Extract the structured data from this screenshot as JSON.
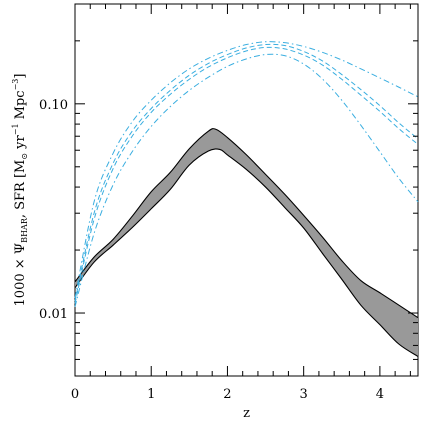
{
  "chart_data": {
    "type": "area",
    "xlabel": "z",
    "ylabel": "1000 × ΨBHAR, SFR [M⊙ yr⁻¹ Mpc⁻³]",
    "ylabel_parts": {
      "pre": "1000 × Ψ",
      "sub": "BHAR",
      "mid": ", SFR [M",
      "sun": "⊙",
      "yr": " yr",
      "exp1": "−1",
      "mpc": " Mpc",
      "exp3": "−3",
      "close": "]"
    },
    "xlim": [
      0,
      4.5
    ],
    "ylim": [
      0.005,
      0.3
    ],
    "yscale": "log",
    "x_ticks": [
      0,
      1,
      2,
      3,
      4
    ],
    "x_tick_labels": [
      "0",
      "1",
      "2",
      "3",
      "4"
    ],
    "y_ticks": [
      0.01,
      0.1
    ],
    "y_tick_labels": [
      "0.01",
      "0.10"
    ],
    "band_color": "#999999",
    "sfr_color": "#3aaee0",
    "band": {
      "name": "",
      "upper": [
        [
          0,
          0.0141
        ],
        [
          0.25,
          0.0185
        ],
        [
          0.5,
          0.0225
        ],
        [
          0.75,
          0.029
        ],
        [
          1.0,
          0.038
        ],
        [
          1.25,
          0.047
        ],
        [
          1.5,
          0.061
        ],
        [
          1.75,
          0.074
        ],
        [
          1.85,
          0.0755
        ],
        [
          2.0,
          0.069
        ],
        [
          2.25,
          0.057
        ],
        [
          2.5,
          0.046
        ],
        [
          2.75,
          0.037
        ],
        [
          3.0,
          0.0293
        ],
        [
          3.25,
          0.023
        ],
        [
          3.5,
          0.0178
        ],
        [
          3.75,
          0.0143
        ],
        [
          4.0,
          0.0125
        ],
        [
          4.25,
          0.0109
        ],
        [
          4.5,
          0.0095
        ]
      ],
      "lower": [
        [
          0,
          0.0132
        ],
        [
          0.25,
          0.0175
        ],
        [
          0.5,
          0.0211
        ],
        [
          0.75,
          0.0256
        ],
        [
          1.0,
          0.0315
        ],
        [
          1.25,
          0.039
        ],
        [
          1.5,
          0.051
        ],
        [
          1.75,
          0.0595
        ],
        [
          1.9,
          0.0605
        ],
        [
          2.0,
          0.057
        ],
        [
          2.25,
          0.0485
        ],
        [
          2.5,
          0.04
        ],
        [
          2.75,
          0.032
        ],
        [
          3.0,
          0.0255
        ],
        [
          3.25,
          0.0192
        ],
        [
          3.5,
          0.0145
        ],
        [
          3.75,
          0.0109
        ],
        [
          4.0,
          0.0088
        ],
        [
          4.25,
          0.0071
        ],
        [
          4.5,
          0.0062
        ]
      ]
    },
    "series": [
      {
        "style": "dashdot",
        "values": [
          [
            0,
            0.0118
          ],
          [
            0.25,
            0.034
          ],
          [
            0.5,
            0.058
          ],
          [
            0.75,
            0.082
          ],
          [
            1.0,
            0.104
          ],
          [
            1.25,
            0.126
          ],
          [
            1.5,
            0.147
          ],
          [
            1.75,
            0.165
          ],
          [
            2.0,
            0.18
          ],
          [
            2.25,
            0.192
          ],
          [
            2.5,
            0.198
          ],
          [
            2.75,
            0.196
          ],
          [
            3.0,
            0.188
          ],
          [
            3.25,
            0.176
          ],
          [
            3.5,
            0.162
          ],
          [
            3.75,
            0.147
          ],
          [
            4.0,
            0.133
          ],
          [
            4.25,
            0.12
          ],
          [
            4.5,
            0.108
          ]
        ]
      },
      {
        "style": "dashed",
        "values": [
          [
            0,
            0.0114
          ],
          [
            0.25,
            0.03
          ],
          [
            0.5,
            0.052
          ],
          [
            0.75,
            0.074
          ],
          [
            1.0,
            0.095
          ],
          [
            1.25,
            0.116
          ],
          [
            1.5,
            0.137
          ],
          [
            1.75,
            0.156
          ],
          [
            2.0,
            0.172
          ],
          [
            2.25,
            0.185
          ],
          [
            2.5,
            0.192
          ],
          [
            2.75,
            0.19
          ],
          [
            3.0,
            0.178
          ],
          [
            3.25,
            0.16
          ],
          [
            3.5,
            0.138
          ],
          [
            3.75,
            0.117
          ],
          [
            4.0,
            0.098
          ],
          [
            4.25,
            0.081
          ],
          [
            4.5,
            0.068
          ]
        ]
      },
      {
        "style": "dashed",
        "values": [
          [
            0,
            0.0111
          ],
          [
            0.25,
            0.028
          ],
          [
            0.5,
            0.049
          ],
          [
            0.75,
            0.07
          ],
          [
            1.0,
            0.091
          ],
          [
            1.25,
            0.111
          ],
          [
            1.5,
            0.131
          ],
          [
            1.75,
            0.15
          ],
          [
            2.0,
            0.166
          ],
          [
            2.25,
            0.179
          ],
          [
            2.5,
            0.186
          ],
          [
            2.75,
            0.183
          ],
          [
            3.0,
            0.171
          ],
          [
            3.25,
            0.153
          ],
          [
            3.5,
            0.131
          ],
          [
            3.75,
            0.11
          ],
          [
            4.0,
            0.092
          ],
          [
            4.25,
            0.076
          ],
          [
            4.5,
            0.064
          ]
        ]
      },
      {
        "style": "dashdot",
        "values": [
          [
            0,
            0.0107
          ],
          [
            0.25,
            0.024
          ],
          [
            0.5,
            0.041
          ],
          [
            0.75,
            0.059
          ],
          [
            1.0,
            0.078
          ],
          [
            1.25,
            0.097
          ],
          [
            1.5,
            0.116
          ],
          [
            1.75,
            0.134
          ],
          [
            2.0,
            0.151
          ],
          [
            2.25,
            0.164
          ],
          [
            2.5,
            0.172
          ],
          [
            2.75,
            0.17
          ],
          [
            3.0,
            0.155
          ],
          [
            3.25,
            0.131
          ],
          [
            3.5,
            0.104
          ],
          [
            3.75,
            0.079
          ],
          [
            4.0,
            0.059
          ],
          [
            4.25,
            0.044
          ],
          [
            4.5,
            0.034
          ]
        ]
      }
    ]
  }
}
